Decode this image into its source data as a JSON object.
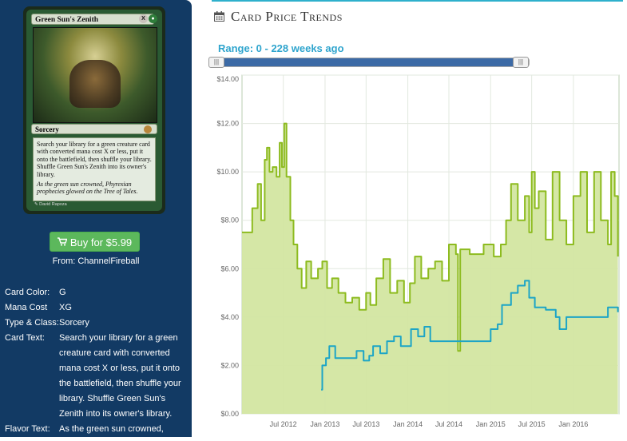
{
  "card": {
    "name": "Green Sun's Zenith",
    "mana_symbols": [
      "X",
      "G"
    ],
    "type_line": "Sorcery",
    "rules_text": "Search your library for a green creature card with converted mana cost X or less, put it onto the battlefield, then shuffle your library. Shuffle Green Sun's Zenith into its owner's library.",
    "flavor_text": "As the green sun crowned, Phyrexian prophecies glowed on the Tree of Tales.",
    "illustrator": "David Rapoza"
  },
  "buy": {
    "label": "Buy for $5.99",
    "from": "From: ChannelFireball"
  },
  "attributes": [
    {
      "key": "Card Color:",
      "value": "G"
    },
    {
      "key": "Mana Cost",
      "value": "XG"
    },
    {
      "key": "Type & Class:",
      "value": "Sorcery"
    },
    {
      "key": "Card Text:",
      "value": "Search your library for a green creature card with converted mana cost X or less, put it onto the battlefield, then shuffle your library. Shuffle Green Sun's Zenith into its owner's library."
    },
    {
      "key": "Flavor Text:",
      "value": "As the green sun crowned,"
    }
  ],
  "panel": {
    "title": "Card Price Trends",
    "range_label": "Range: 0 - 228 weeks ago",
    "icon": "calendar-icon"
  },
  "colors": {
    "sidebar": "#123a64",
    "accent": "#2ea4cd",
    "buy": "#5cb85c",
    "series_high": "#8dbb1f",
    "series_low": "#1da5c6",
    "fill": "#d3e6a1"
  },
  "chart_data": {
    "type": "area",
    "y_ticks": [
      "$0.00",
      "$2.00",
      "$4.00",
      "$6.00",
      "$8.00",
      "$10.00",
      "$12.00",
      "$14.00"
    ],
    "x_ticks": [
      "Jul 2012",
      "Jan 2013",
      "Jul 2013",
      "Jan 2014",
      "Jul 2014",
      "Jan 2015",
      "Jul 2015",
      "Jan 2016"
    ],
    "ylim": [
      0,
      14
    ],
    "xlim": [
      "2012-01-01",
      "2016-07-20"
    ],
    "grid": true,
    "series": [
      {
        "color": "#8dbb1f",
        "points": [
          [
            "2012-01-01",
            7.5
          ],
          [
            "2012-02-15",
            8.5
          ],
          [
            "2012-03-10",
            9.5
          ],
          [
            "2012-03-25",
            8.0
          ],
          [
            "2012-04-10",
            10.5
          ],
          [
            "2012-04-20",
            11.0
          ],
          [
            "2012-05-01",
            10.0
          ],
          [
            "2012-05-15",
            10.2
          ],
          [
            "2012-06-01",
            9.8
          ],
          [
            "2012-06-15",
            11.2
          ],
          [
            "2012-06-25",
            10.2
          ],
          [
            "2012-07-05",
            12.0
          ],
          [
            "2012-07-15",
            9.8
          ],
          [
            "2012-08-01",
            8.0
          ],
          [
            "2012-08-15",
            7.0
          ],
          [
            "2012-09-01",
            6.0
          ],
          [
            "2012-09-20",
            5.2
          ],
          [
            "2012-10-10",
            6.3
          ],
          [
            "2012-11-01",
            5.6
          ],
          [
            "2012-12-01",
            6.0
          ],
          [
            "2012-12-20",
            6.3
          ],
          [
            "2013-01-10",
            5.2
          ],
          [
            "2013-02-01",
            5.6
          ],
          [
            "2013-03-01",
            5.0
          ],
          [
            "2013-04-01",
            4.6
          ],
          [
            "2013-05-01",
            4.8
          ],
          [
            "2013-06-01",
            4.3
          ],
          [
            "2013-07-01",
            5.0
          ],
          [
            "2013-07-20",
            4.5
          ],
          [
            "2013-08-15",
            5.6
          ],
          [
            "2013-09-15",
            6.4
          ],
          [
            "2013-10-15",
            5.0
          ],
          [
            "2013-11-15",
            5.5
          ],
          [
            "2013-12-15",
            4.6
          ],
          [
            "2014-01-10",
            5.4
          ],
          [
            "2014-02-01",
            6.5
          ],
          [
            "2014-03-01",
            5.6
          ],
          [
            "2014-04-01",
            6.0
          ],
          [
            "2014-05-01",
            6.3
          ],
          [
            "2014-06-01",
            5.5
          ],
          [
            "2014-07-01",
            7.0
          ],
          [
            "2014-08-01",
            6.6
          ],
          [
            "2014-08-10",
            2.6
          ],
          [
            "2014-08-20",
            6.8
          ],
          [
            "2014-10-01",
            6.6
          ],
          [
            "2014-12-01",
            7.0
          ],
          [
            "2015-01-15",
            6.5
          ],
          [
            "2015-02-15",
            7.0
          ],
          [
            "2015-03-10",
            8.0
          ],
          [
            "2015-04-01",
            9.5
          ],
          [
            "2015-05-01",
            8.0
          ],
          [
            "2015-06-01",
            9.0
          ],
          [
            "2015-06-20",
            7.5
          ],
          [
            "2015-07-01",
            10.0
          ],
          [
            "2015-07-15",
            8.5
          ],
          [
            "2015-08-01",
            9.2
          ],
          [
            "2015-09-01",
            7.2
          ],
          [
            "2015-10-01",
            10.0
          ],
          [
            "2015-11-01",
            8.0
          ],
          [
            "2015-12-01",
            7.0
          ],
          [
            "2016-01-01",
            9.0
          ],
          [
            "2016-02-01",
            10.0
          ],
          [
            "2016-03-01",
            7.5
          ],
          [
            "2016-04-01",
            10.0
          ],
          [
            "2016-05-01",
            8.0
          ],
          [
            "2016-06-01",
            7.0
          ],
          [
            "2016-06-15",
            10.0
          ],
          [
            "2016-07-01",
            9.0
          ],
          [
            "2016-07-15",
            6.5
          ]
        ]
      },
      {
        "color": "#1da5c6",
        "points": [
          [
            "2012-12-15",
            1.0
          ],
          [
            "2012-12-20",
            2.0
          ],
          [
            "2013-01-05",
            2.3
          ],
          [
            "2013-01-20",
            2.8
          ],
          [
            "2013-02-15",
            2.3
          ],
          [
            "2013-05-01",
            2.3
          ],
          [
            "2013-05-20",
            2.6
          ],
          [
            "2013-06-20",
            2.2
          ],
          [
            "2013-07-15",
            2.4
          ],
          [
            "2013-08-01",
            2.8
          ],
          [
            "2013-09-01",
            2.5
          ],
          [
            "2013-10-01",
            3.0
          ],
          [
            "2013-11-01",
            3.2
          ],
          [
            "2013-12-01",
            2.8
          ],
          [
            "2014-01-15",
            3.5
          ],
          [
            "2014-02-15",
            3.2
          ],
          [
            "2014-03-15",
            3.6
          ],
          [
            "2014-04-10",
            3.0
          ],
          [
            "2014-09-01",
            3.0
          ],
          [
            "2014-12-01",
            3.0
          ],
          [
            "2015-01-01",
            3.5
          ],
          [
            "2015-02-01",
            3.7
          ],
          [
            "2015-02-20",
            4.5
          ],
          [
            "2015-04-01",
            5.0
          ],
          [
            "2015-05-01",
            5.3
          ],
          [
            "2015-06-01",
            5.5
          ],
          [
            "2015-06-20",
            4.8
          ],
          [
            "2015-07-15",
            4.4
          ],
          [
            "2015-09-01",
            4.3
          ],
          [
            "2015-10-15",
            4.0
          ],
          [
            "2015-11-01",
            3.5
          ],
          [
            "2015-12-01",
            4.0
          ],
          [
            "2016-01-15",
            4.0
          ],
          [
            "2016-05-01",
            4.0
          ],
          [
            "2016-06-01",
            4.4
          ],
          [
            "2016-07-15",
            4.2
          ]
        ]
      }
    ]
  }
}
